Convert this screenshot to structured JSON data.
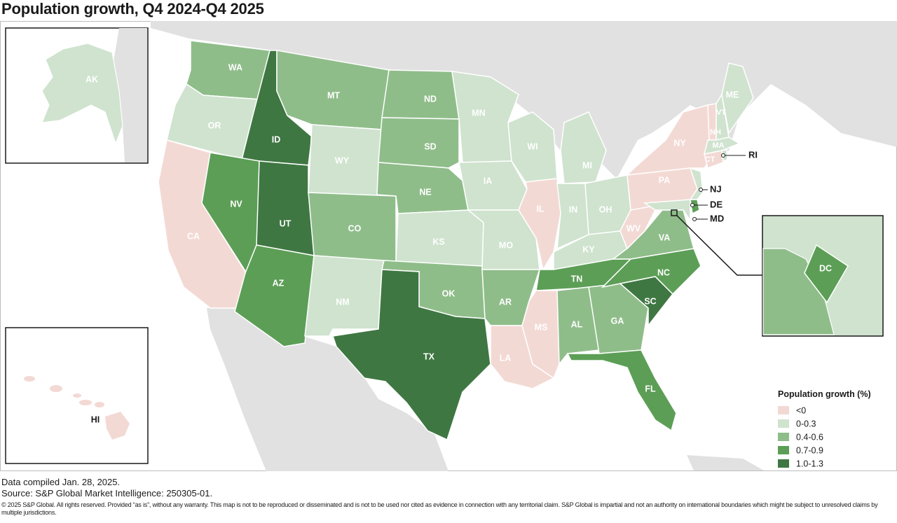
{
  "title": "Population growth, Q4 2024-Q4 2025",
  "legend": {
    "title": "Population growth (%)",
    "items": [
      {
        "label": "<0",
        "color": "#f3d9d4"
      },
      {
        "label": "0-0.3",
        "color": "#cfe3cf"
      },
      {
        "label": "0.4-0.6",
        "color": "#8fbd8a"
      },
      {
        "label": "0.7-0.9",
        "color": "#5c9e56"
      },
      {
        "label": "1.0-1.3",
        "color": "#3f7742"
      }
    ]
  },
  "colors": {
    "ocean": "#ffffff",
    "land_outside": "#e1e1e1",
    "border": "#ffffff"
  },
  "states": [
    {
      "abbr": "WA",
      "class": "0.4-0.6"
    },
    {
      "abbr": "OR",
      "class": "0-0.3"
    },
    {
      "abbr": "CA",
      "class": "<0"
    },
    {
      "abbr": "ID",
      "class": "1.0-1.3"
    },
    {
      "abbr": "NV",
      "class": "0.7-0.9"
    },
    {
      "abbr": "UT",
      "class": "1.0-1.3"
    },
    {
      "abbr": "AZ",
      "class": "0.7-0.9"
    },
    {
      "abbr": "MT",
      "class": "0.4-0.6"
    },
    {
      "abbr": "WY",
      "class": "0-0.3"
    },
    {
      "abbr": "CO",
      "class": "0.4-0.6"
    },
    {
      "abbr": "NM",
      "class": "0-0.3"
    },
    {
      "abbr": "ND",
      "class": "0.4-0.6"
    },
    {
      "abbr": "SD",
      "class": "0.4-0.6"
    },
    {
      "abbr": "NE",
      "class": "0.4-0.6"
    },
    {
      "abbr": "KS",
      "class": "0-0.3"
    },
    {
      "abbr": "OK",
      "class": "0.4-0.6"
    },
    {
      "abbr": "TX",
      "class": "1.0-1.3"
    },
    {
      "abbr": "MN",
      "class": "0-0.3"
    },
    {
      "abbr": "IA",
      "class": "0-0.3"
    },
    {
      "abbr": "MO",
      "class": "0-0.3"
    },
    {
      "abbr": "AR",
      "class": "0.4-0.6"
    },
    {
      "abbr": "LA",
      "class": "<0"
    },
    {
      "abbr": "WI",
      "class": "0-0.3"
    },
    {
      "abbr": "IL",
      "class": "<0"
    },
    {
      "abbr": "MI",
      "class": "0-0.3"
    },
    {
      "abbr": "IN",
      "class": "0-0.3"
    },
    {
      "abbr": "OH",
      "class": "0-0.3"
    },
    {
      "abbr": "KY",
      "class": "0-0.3"
    },
    {
      "abbr": "TN",
      "class": "0.7-0.9"
    },
    {
      "abbr": "MS",
      "class": "<0"
    },
    {
      "abbr": "AL",
      "class": "0.4-0.6"
    },
    {
      "abbr": "GA",
      "class": "0.4-0.6"
    },
    {
      "abbr": "FL",
      "class": "0.7-0.9"
    },
    {
      "abbr": "SC",
      "class": "1.0-1.3"
    },
    {
      "abbr": "NC",
      "class": "0.7-0.9"
    },
    {
      "abbr": "VA",
      "class": "0.4-0.6"
    },
    {
      "abbr": "WV",
      "class": "<0"
    },
    {
      "abbr": "PA",
      "class": "<0"
    },
    {
      "abbr": "NY",
      "class": "<0"
    },
    {
      "abbr": "VT",
      "class": "<0"
    },
    {
      "abbr": "NH",
      "class": "0-0.3"
    },
    {
      "abbr": "ME",
      "class": "0-0.3"
    },
    {
      "abbr": "MA",
      "class": "0-0.3"
    },
    {
      "abbr": "CT",
      "class": "<0"
    },
    {
      "abbr": "RI",
      "class": "0-0.3"
    },
    {
      "abbr": "NJ",
      "class": "0-0.3"
    },
    {
      "abbr": "DE",
      "class": "0.7-0.9"
    },
    {
      "abbr": "MD",
      "class": "0-0.3"
    },
    {
      "abbr": "DC",
      "class": "0.7-0.9"
    },
    {
      "abbr": "AK",
      "class": "0-0.3"
    },
    {
      "abbr": "HI",
      "class": "<0"
    }
  ],
  "footer": {
    "compiled": "Data compiled Jan. 28, 2025.",
    "source": "Source: S&P Global Market Intelligence: 250305-01.",
    "copyright": "© 2025 S&P Global. All rights reserved. Provided “as is”, without any warranty. This map is not to be reproduced or disseminated and is not to be used nor cited as evidence in connection with any territorial claim. S&P Global is impartial and not an authority on international boundaries which might be subject to unresolved claims by multiple jurisdictions."
  }
}
